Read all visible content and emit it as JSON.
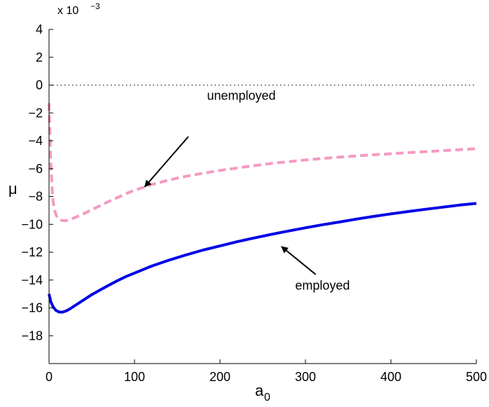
{
  "chart_data": {
    "type": "line",
    "title": "",
    "xlabel": "a",
    "xlabel_subscript": "0",
    "ylabel": "μ",
    "y_scale_label": "x 10",
    "y_scale_exponent": "−3",
    "xlim": [
      0,
      500
    ],
    "ylim": [
      -20,
      4
    ],
    "x_ticks": [
      0,
      100,
      200,
      300,
      400,
      500
    ],
    "y_ticks": [
      4,
      2,
      0,
      -2,
      -4,
      -6,
      -8,
      -10,
      -12,
      -14,
      -16,
      -18
    ],
    "x_tick_labels": [
      "0",
      "100",
      "200",
      "300",
      "400",
      "500"
    ],
    "y_tick_labels": [
      "4",
      "2",
      "0",
      "−2",
      "−4",
      "−6",
      "−8",
      "−10",
      "−12",
      "−14",
      "−16",
      "−18"
    ],
    "grid": false,
    "reference_line": {
      "y": 0,
      "style": "dotted",
      "color": "#000000"
    },
    "series": [
      {
        "name": "employed",
        "color": "#0000e6",
        "style": "solid",
        "x": [
          0,
          2,
          5,
          8,
          12,
          16,
          20,
          25,
          30,
          40,
          50,
          60,
          70,
          80,
          90,
          100,
          120,
          140,
          160,
          180,
          200,
          220,
          240,
          260,
          280,
          300,
          320,
          340,
          360,
          380,
          400,
          420,
          440,
          460,
          480,
          500
        ],
        "y": [
          -15.0,
          -15.55,
          -15.95,
          -16.18,
          -16.3,
          -16.3,
          -16.22,
          -16.05,
          -15.85,
          -15.45,
          -15.05,
          -14.7,
          -14.37,
          -14.05,
          -13.75,
          -13.5,
          -13.0,
          -12.58,
          -12.2,
          -11.85,
          -11.55,
          -11.25,
          -10.98,
          -10.72,
          -10.48,
          -10.25,
          -10.03,
          -9.83,
          -9.62,
          -9.43,
          -9.25,
          -9.08,
          -8.92,
          -8.77,
          -8.62,
          -8.5
        ]
      },
      {
        "name": "unemployed",
        "color": "#f49ac1",
        "style": "dashed",
        "x": [
          0,
          2,
          4,
          6,
          8,
          10,
          14,
          18,
          22,
          26,
          30,
          40,
          50,
          60,
          70,
          80,
          90,
          100,
          120,
          140,
          160,
          180,
          200,
          220,
          240,
          260,
          280,
          300,
          320,
          340,
          360,
          380,
          400,
          420,
          440,
          460,
          480,
          500
        ],
        "y": [
          -1.3,
          -5.5,
          -7.9,
          -8.9,
          -9.3,
          -9.55,
          -9.7,
          -9.75,
          -9.7,
          -9.62,
          -9.52,
          -9.25,
          -8.95,
          -8.65,
          -8.35,
          -8.08,
          -7.8,
          -7.55,
          -7.15,
          -6.82,
          -6.55,
          -6.33,
          -6.13,
          -5.95,
          -5.78,
          -5.63,
          -5.5,
          -5.38,
          -5.27,
          -5.17,
          -5.08,
          -5.0,
          -4.93,
          -4.85,
          -4.78,
          -4.71,
          -4.64,
          -4.57
        ]
      }
    ],
    "annotations": [
      {
        "text": "unemployed",
        "label_x": 225,
        "label_y": -1.05,
        "arrow_from": [
          163,
          -3.7
        ],
        "arrow_to": [
          112,
          -7.3
        ]
      },
      {
        "text": "employed",
        "label_x": 320,
        "label_y": -14.7,
        "arrow_from": [
          312,
          -13.6
        ],
        "arrow_to": [
          272,
          -11.6
        ]
      }
    ]
  }
}
